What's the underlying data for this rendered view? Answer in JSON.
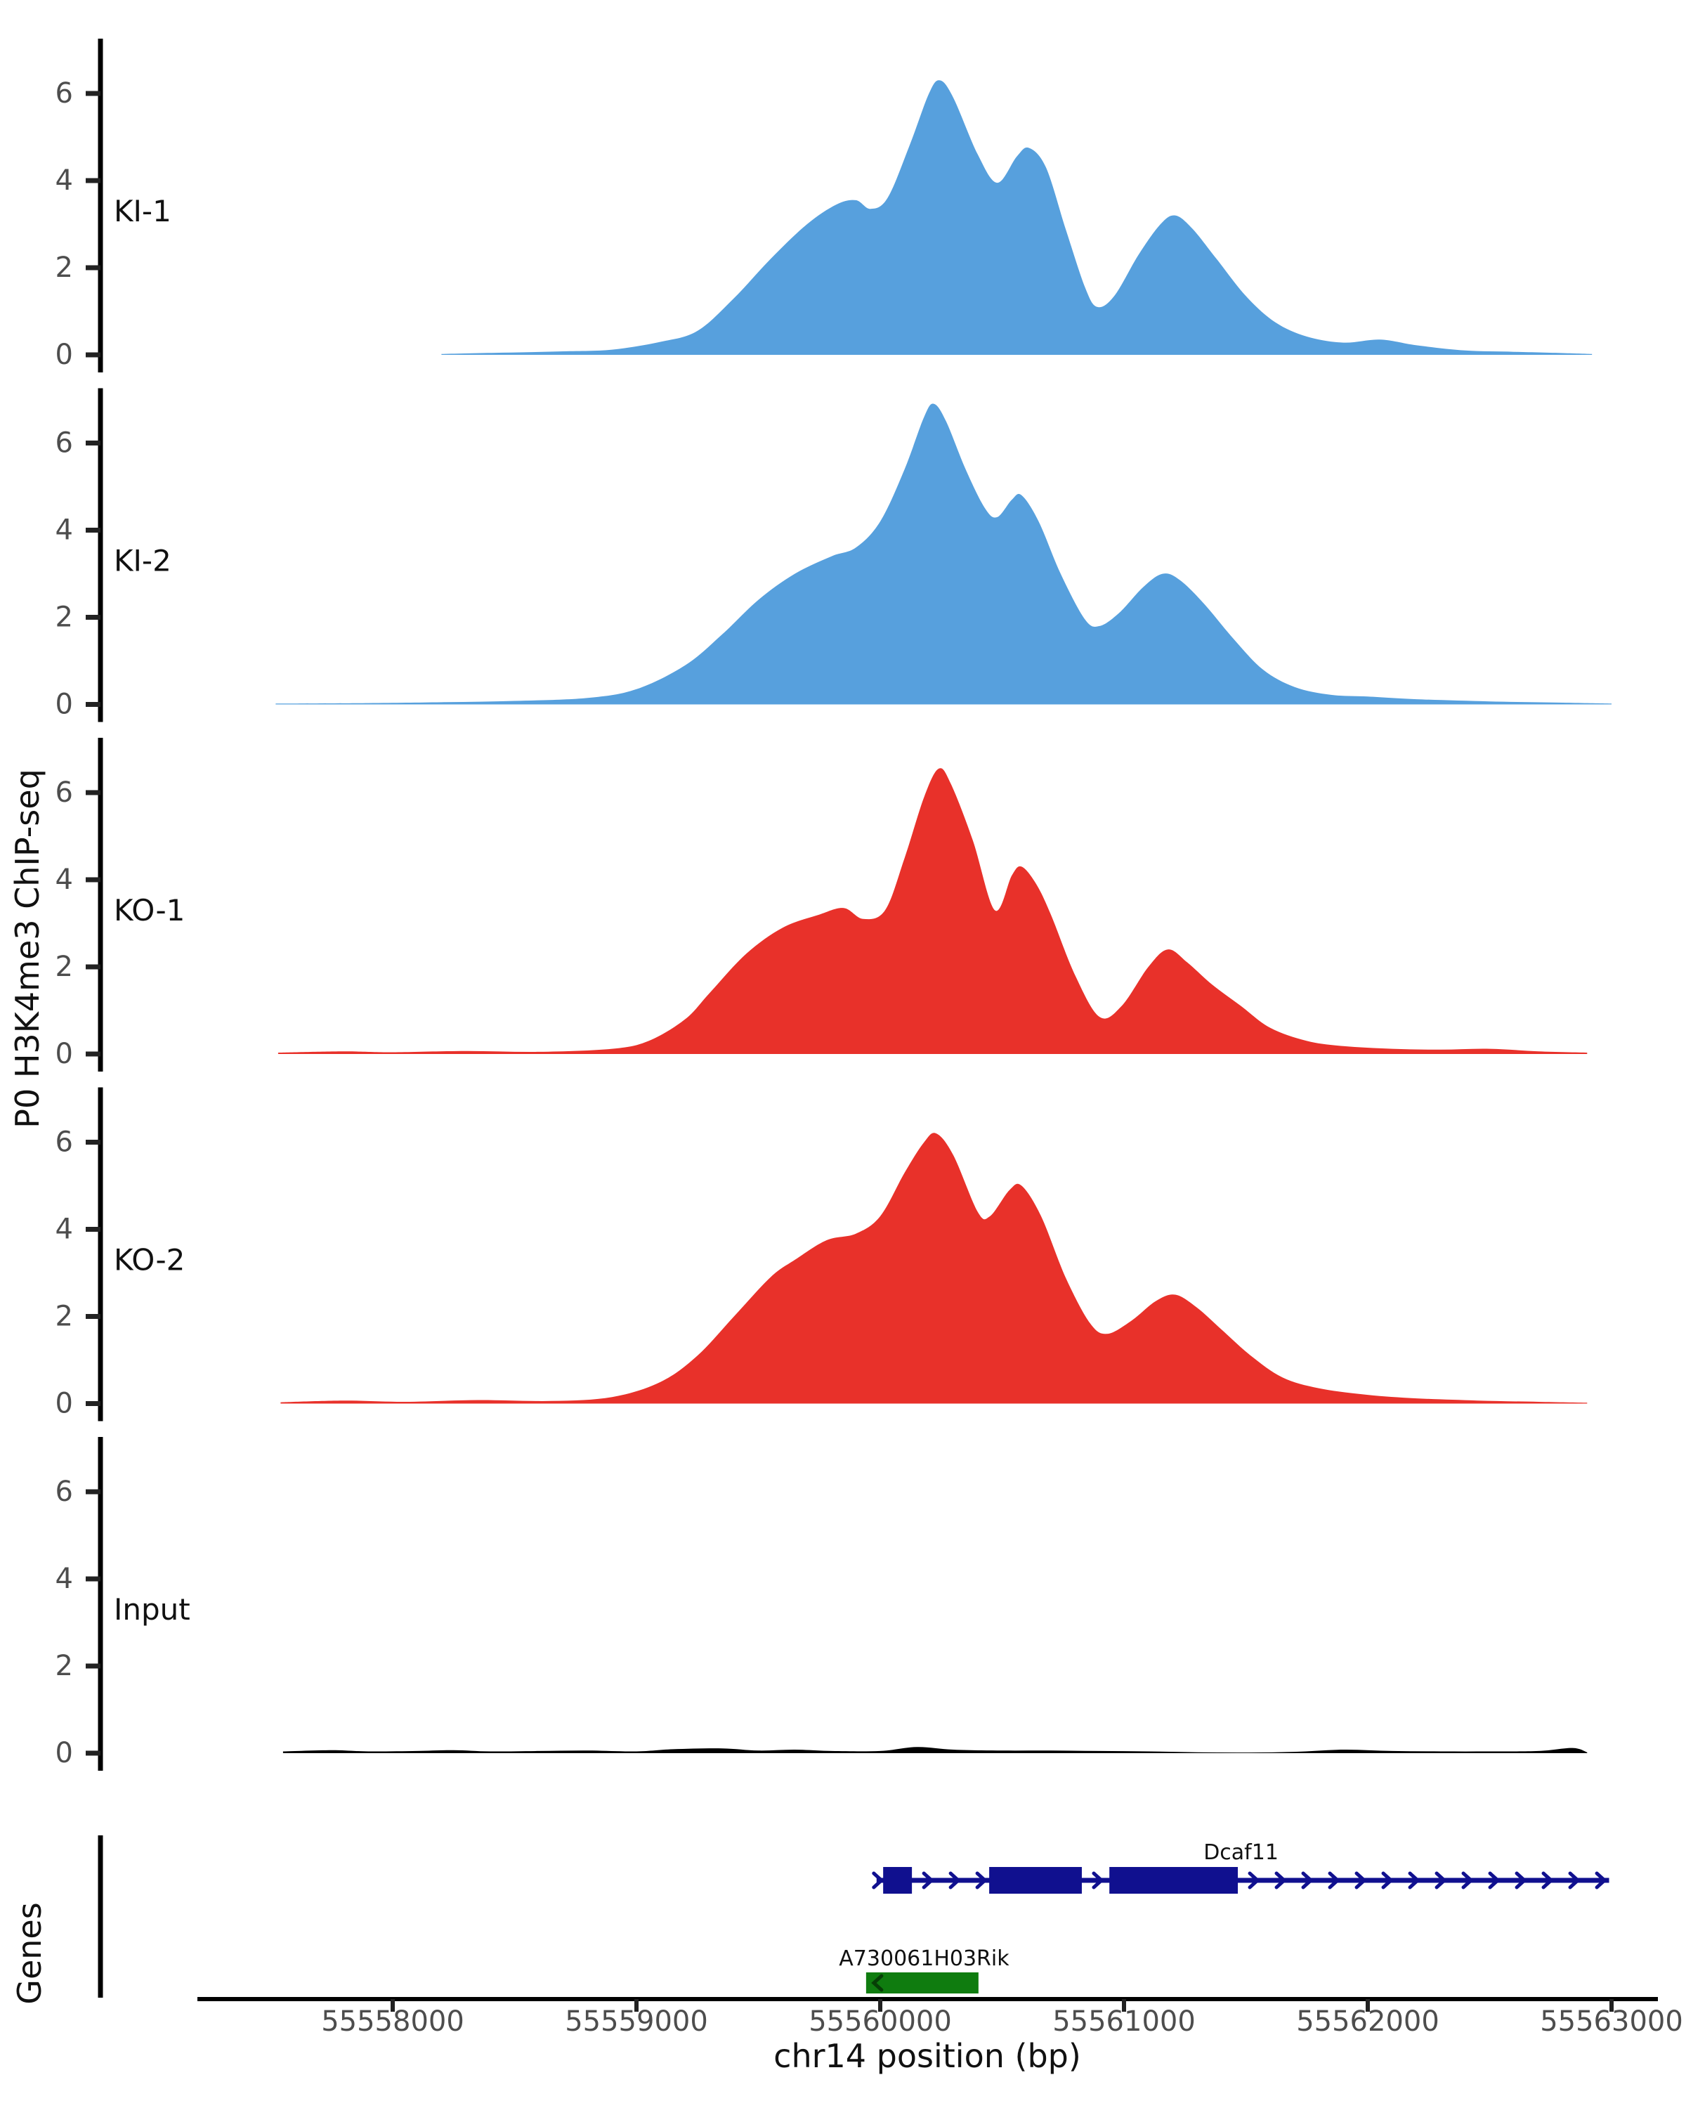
{
  "figure": {
    "ylabel": "P0 H3K4me3 ChIP-seq",
    "xlabel": "chr14 position (bp)",
    "genes_label": "Genes"
  },
  "chart_data": {
    "type": "area",
    "title": "",
    "xlabel": "chr14 position (bp)",
    "ylabel": "P0 H3K4me3 ChIP-seq",
    "legend_position": "none",
    "grid": false,
    "x_axis": {
      "range": [
        55557200,
        55563200
      ],
      "ticks": [
        55558000,
        55559000,
        55560000,
        55561000,
        55562000,
        55563000
      ]
    },
    "y_axis": {
      "range": [
        0,
        7.2
      ],
      "ticks": [
        0,
        2,
        4,
        6
      ]
    },
    "colors": {
      "ki": "#57a0dd",
      "ko": "#e8312a",
      "input": "#000000",
      "dcaf11": "#10108f",
      "rik": "#0f7c0f",
      "tick_text": "#4d4d4d",
      "axis": "#000000"
    },
    "tracks": [
      {
        "label": "KI-1",
        "color": "#57a0dd",
        "points": [
          [
            55558200,
            0.02
          ],
          [
            55558450,
            0.05
          ],
          [
            55558700,
            0.08
          ],
          [
            55558900,
            0.12
          ],
          [
            55559100,
            0.3
          ],
          [
            55559250,
            0.55
          ],
          [
            55559400,
            1.3
          ],
          [
            55559550,
            2.2
          ],
          [
            55559700,
            3.0
          ],
          [
            55559820,
            3.45
          ],
          [
            55559900,
            3.55
          ],
          [
            55559960,
            3.35
          ],
          [
            55560030,
            3.6
          ],
          [
            55560120,
            4.8
          ],
          [
            55560200,
            6.0
          ],
          [
            55560245,
            6.3
          ],
          [
            55560300,
            5.9
          ],
          [
            55560400,
            4.6
          ],
          [
            55560480,
            3.95
          ],
          [
            55560560,
            4.55
          ],
          [
            55560610,
            4.75
          ],
          [
            55560680,
            4.3
          ],
          [
            55560760,
            2.9
          ],
          [
            55560840,
            1.55
          ],
          [
            55560890,
            1.1
          ],
          [
            55560960,
            1.35
          ],
          [
            55561060,
            2.3
          ],
          [
            55561150,
            3.0
          ],
          [
            55561210,
            3.2
          ],
          [
            55561280,
            2.9
          ],
          [
            55561380,
            2.2
          ],
          [
            55561500,
            1.35
          ],
          [
            55561620,
            0.75
          ],
          [
            55561750,
            0.42
          ],
          [
            55561900,
            0.28
          ],
          [
            55562050,
            0.35
          ],
          [
            55562200,
            0.22
          ],
          [
            55562400,
            0.1
          ],
          [
            55562600,
            0.07
          ],
          [
            55562800,
            0.04
          ],
          [
            55562920,
            0.02
          ]
        ]
      },
      {
        "label": "KI-2",
        "color": "#57a0dd",
        "points": [
          [
            55557520,
            0.02
          ],
          [
            55557900,
            0.03
          ],
          [
            55558200,
            0.05
          ],
          [
            55558500,
            0.08
          ],
          [
            55558800,
            0.15
          ],
          [
            55559000,
            0.35
          ],
          [
            55559200,
            0.9
          ],
          [
            55559350,
            1.6
          ],
          [
            55559500,
            2.4
          ],
          [
            55559650,
            3.0
          ],
          [
            55559800,
            3.4
          ],
          [
            55559900,
            3.6
          ],
          [
            55560000,
            4.2
          ],
          [
            55560100,
            5.4
          ],
          [
            55560180,
            6.6
          ],
          [
            55560220,
            6.9
          ],
          [
            55560270,
            6.5
          ],
          [
            55560350,
            5.4
          ],
          [
            55560430,
            4.5
          ],
          [
            55560480,
            4.3
          ],
          [
            55560540,
            4.7
          ],
          [
            55560580,
            4.8
          ],
          [
            55560650,
            4.2
          ],
          [
            55560740,
            3.0
          ],
          [
            55560840,
            1.95
          ],
          [
            55560900,
            1.8
          ],
          [
            55560980,
            2.1
          ],
          [
            55561080,
            2.7
          ],
          [
            55561160,
            3.0
          ],
          [
            55561230,
            2.85
          ],
          [
            55561330,
            2.3
          ],
          [
            55561450,
            1.5
          ],
          [
            55561570,
            0.8
          ],
          [
            55561700,
            0.4
          ],
          [
            55561850,
            0.22
          ],
          [
            55562000,
            0.18
          ],
          [
            55562200,
            0.12
          ],
          [
            55562500,
            0.07
          ],
          [
            55562800,
            0.04
          ],
          [
            55563000,
            0.02
          ]
        ]
      },
      {
        "label": "KO-1",
        "color": "#e8312a",
        "points": [
          [
            55557530,
            0.03
          ],
          [
            55557800,
            0.06
          ],
          [
            55558000,
            0.04
          ],
          [
            55558300,
            0.07
          ],
          [
            55558600,
            0.05
          ],
          [
            55558900,
            0.12
          ],
          [
            55559050,
            0.3
          ],
          [
            55559200,
            0.8
          ],
          [
            55559300,
            1.4
          ],
          [
            55559450,
            2.3
          ],
          [
            55559600,
            2.9
          ],
          [
            55559750,
            3.2
          ],
          [
            55559850,
            3.35
          ],
          [
            55559930,
            3.1
          ],
          [
            55560020,
            3.3
          ],
          [
            55560100,
            4.5
          ],
          [
            55560180,
            5.9
          ],
          [
            55560240,
            6.55
          ],
          [
            55560290,
            6.2
          ],
          [
            55560380,
            4.9
          ],
          [
            55560470,
            3.3
          ],
          [
            55560540,
            4.1
          ],
          [
            55560580,
            4.3
          ],
          [
            55560640,
            3.9
          ],
          [
            55560700,
            3.2
          ],
          [
            55560800,
            1.8
          ],
          [
            55560900,
            0.85
          ],
          [
            55560990,
            1.1
          ],
          [
            55561100,
            2.0
          ],
          [
            55561180,
            2.4
          ],
          [
            55561260,
            2.1
          ],
          [
            55561360,
            1.6
          ],
          [
            55561480,
            1.1
          ],
          [
            55561600,
            0.6
          ],
          [
            55561750,
            0.3
          ],
          [
            55561900,
            0.18
          ],
          [
            55562100,
            0.12
          ],
          [
            55562300,
            0.1
          ],
          [
            55562500,
            0.12
          ],
          [
            55562700,
            0.06
          ],
          [
            55562900,
            0.03
          ]
        ]
      },
      {
        "label": "KO-2",
        "color": "#e8312a",
        "points": [
          [
            55557540,
            0.03
          ],
          [
            55557800,
            0.07
          ],
          [
            55558050,
            0.04
          ],
          [
            55558350,
            0.08
          ],
          [
            55558650,
            0.06
          ],
          [
            55558900,
            0.15
          ],
          [
            55559100,
            0.5
          ],
          [
            55559250,
            1.1
          ],
          [
            55559400,
            2.0
          ],
          [
            55559550,
            2.9
          ],
          [
            55559650,
            3.3
          ],
          [
            55559780,
            3.75
          ],
          [
            55559900,
            3.9
          ],
          [
            55560000,
            4.3
          ],
          [
            55560100,
            5.3
          ],
          [
            55560180,
            6.0
          ],
          [
            55560230,
            6.2
          ],
          [
            55560300,
            5.7
          ],
          [
            55560400,
            4.4
          ],
          [
            55560450,
            4.3
          ],
          [
            55560530,
            4.9
          ],
          [
            55560580,
            5.0
          ],
          [
            55560660,
            4.3
          ],
          [
            55560760,
            2.9
          ],
          [
            55560860,
            1.85
          ],
          [
            55560930,
            1.6
          ],
          [
            55561030,
            1.9
          ],
          [
            55561130,
            2.35
          ],
          [
            55561210,
            2.5
          ],
          [
            55561300,
            2.2
          ],
          [
            55561400,
            1.7
          ],
          [
            55561520,
            1.1
          ],
          [
            55561650,
            0.6
          ],
          [
            55561800,
            0.35
          ],
          [
            55562000,
            0.2
          ],
          [
            55562200,
            0.12
          ],
          [
            55562450,
            0.07
          ],
          [
            55562700,
            0.04
          ],
          [
            55562900,
            0.02
          ]
        ]
      },
      {
        "label": "Input",
        "color": "#000000",
        "points": [
          [
            55557550,
            0.04
          ],
          [
            55557750,
            0.07
          ],
          [
            55557900,
            0.04
          ],
          [
            55558100,
            0.05
          ],
          [
            55558250,
            0.07
          ],
          [
            55558400,
            0.04
          ],
          [
            55558600,
            0.05
          ],
          [
            55558800,
            0.06
          ],
          [
            55559000,
            0.04
          ],
          [
            55559150,
            0.09
          ],
          [
            55559350,
            0.11
          ],
          [
            55559500,
            0.06
          ],
          [
            55559650,
            0.08
          ],
          [
            55559800,
            0.05
          ],
          [
            55560000,
            0.05
          ],
          [
            55560150,
            0.14
          ],
          [
            55560300,
            0.08
          ],
          [
            55560500,
            0.06
          ],
          [
            55560700,
            0.06
          ],
          [
            55560900,
            0.05
          ],
          [
            55561100,
            0.04
          ],
          [
            55561300,
            0.02
          ],
          [
            55561500,
            0.015
          ],
          [
            55561700,
            0.03
          ],
          [
            55561900,
            0.08
          ],
          [
            55562100,
            0.05
          ],
          [
            55562300,
            0.04
          ],
          [
            55562500,
            0.04
          ],
          [
            55562700,
            0.05
          ],
          [
            55562840,
            0.12
          ],
          [
            55562900,
            0.02
          ]
        ]
      }
    ],
    "genes": [
      {
        "name": "Dcaf11",
        "strand": "+",
        "color": "#10108f",
        "start": 55559985,
        "end": 55562990,
        "exons": [
          [
            55560012,
            55560130
          ],
          [
            55560447,
            55560827
          ],
          [
            55560940,
            55561467
          ]
        ],
        "label_bp": 55561480
      },
      {
        "name": "A730061H03Rik",
        "strand": "-",
        "color": "#0f7c0f",
        "start": 55559942,
        "end": 55560403,
        "exons": [
          [
            55559942,
            55560403
          ]
        ],
        "label_bp": 55560180
      }
    ]
  }
}
